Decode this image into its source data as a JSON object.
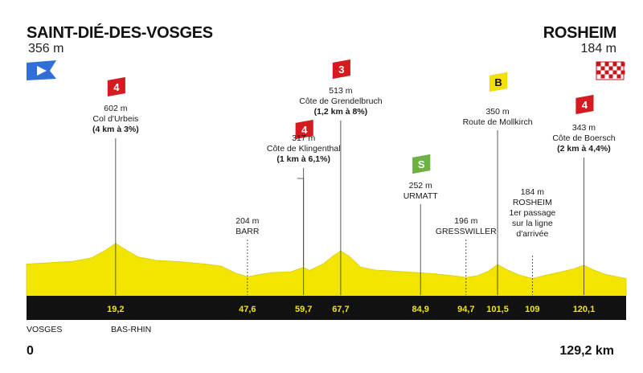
{
  "header": {
    "start_city": "SAINT-DIÉ-DES-VOSGES",
    "start_altitude": "356 m",
    "finish_city": "ROSHEIM",
    "finish_altitude": "184 m"
  },
  "footer": {
    "dept_left": "VOSGES",
    "dept_right": "BAS-RHIN",
    "km_start": "0",
    "km_end": "129,2 km"
  },
  "colors": {
    "profile_fill": "#f2e600",
    "profile_edge": "#d8cd00",
    "base_bar": "#111111",
    "climb_marker": "#d71920",
    "sprint_marker": "#6cb33f",
    "bonus_marker": "#f5e100",
    "start_flag": "#2f6fd6"
  },
  "chart_data": {
    "type": "area",
    "x_unit": "km",
    "y_unit": "m",
    "xlim": [
      0,
      129.2
    ],
    "distance_ticks": [
      "19,2",
      "47,6",
      "59,7",
      "67,7",
      "84,9",
      "94,7",
      "101,5",
      "109",
      "120,1"
    ],
    "profile": [
      [
        0,
        356
      ],
      [
        5,
        372
      ],
      [
        10,
        390
      ],
      [
        14,
        430
      ],
      [
        17,
        520
      ],
      [
        19.2,
        602
      ],
      [
        21,
        540
      ],
      [
        24,
        440
      ],
      [
        28,
        400
      ],
      [
        33,
        385
      ],
      [
        38,
        360
      ],
      [
        42,
        330
      ],
      [
        45,
        250
      ],
      [
        47.6,
        204
      ],
      [
        50,
        230
      ],
      [
        53,
        255
      ],
      [
        57,
        265
      ],
      [
        59.7,
        317
      ],
      [
        61,
        280
      ],
      [
        64,
        360
      ],
      [
        66,
        450
      ],
      [
        67.7,
        513
      ],
      [
        69.5,
        450
      ],
      [
        72,
        320
      ],
      [
        75,
        285
      ],
      [
        80,
        270
      ],
      [
        84.9,
        252
      ],
      [
        88,
        240
      ],
      [
        92,
        215
      ],
      [
        94.7,
        196
      ],
      [
        97,
        215
      ],
      [
        99.5,
        270
      ],
      [
        101.5,
        350
      ],
      [
        103.5,
        290
      ],
      [
        106,
        230
      ],
      [
        109,
        184
      ],
      [
        112,
        225
      ],
      [
        115,
        260
      ],
      [
        118,
        300
      ],
      [
        120.1,
        343
      ],
      [
        122,
        290
      ],
      [
        125,
        230
      ],
      [
        129.2,
        184
      ]
    ],
    "points": [
      {
        "km": "19,2",
        "marker": "4",
        "kind": "climb",
        "altitude": "602 m",
        "name": "Col d'Urbeis",
        "detail": "(4 km à 3%)"
      },
      {
        "km": "47,6",
        "marker": "",
        "kind": "place",
        "altitude": "204 m",
        "name": "BARR",
        "detail": ""
      },
      {
        "km": "59,7",
        "marker": "4",
        "kind": "climb",
        "altitude": "317 m",
        "name": "Côte de Klingenthal",
        "detail": "(1 km à 6,1%)"
      },
      {
        "km": "67,7",
        "marker": "3",
        "kind": "climb",
        "altitude": "513 m",
        "name": "Côte de Grendelbruch",
        "detail": "(1,2 km à 8%)"
      },
      {
        "km": "84,9",
        "marker": "S",
        "kind": "sprint",
        "altitude": "252 m",
        "name": "URMATT",
        "detail": ""
      },
      {
        "km": "94,7",
        "marker": "",
        "kind": "place",
        "altitude": "196 m",
        "name": "GRESSWILLER",
        "detail": ""
      },
      {
        "km": "101,5",
        "marker": "B",
        "kind": "bonus",
        "altitude": "350 m",
        "name": "Route de Mollkirch",
        "detail": ""
      },
      {
        "km": "109",
        "marker": "",
        "kind": "passage",
        "altitude": "184 m",
        "name": "ROSHEIM",
        "detail_lines": [
          "1er passage",
          "sur la ligne",
          "d'arrivée"
        ]
      },
      {
        "km": "120,1",
        "marker": "4",
        "kind": "climb",
        "altitude": "343 m",
        "name": "Côte de Boersch",
        "detail": "(2 km à 4,4%)"
      }
    ]
  }
}
